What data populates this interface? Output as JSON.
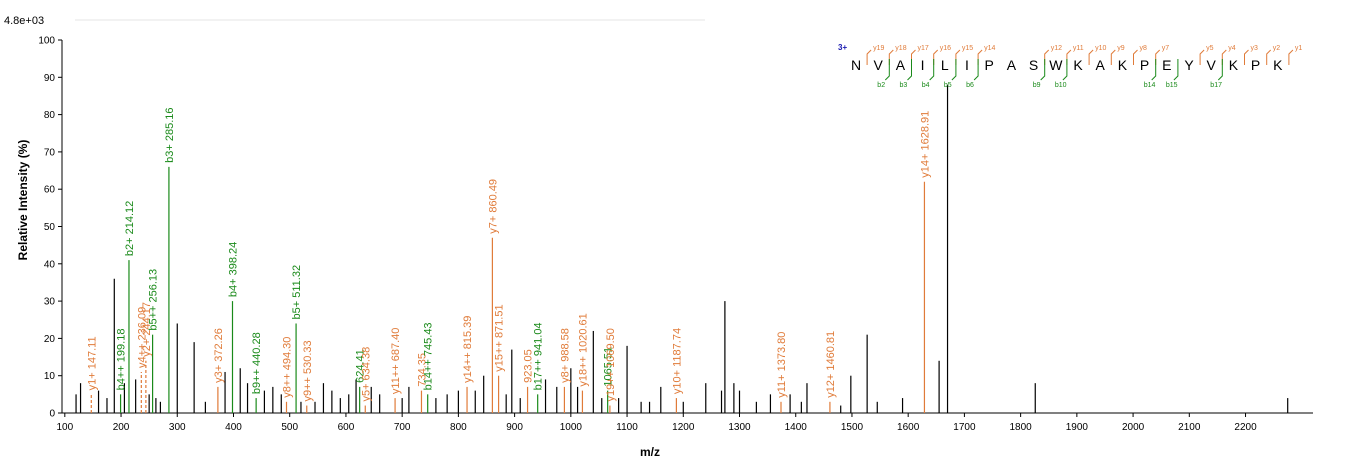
{
  "chart_data": {
    "type": "bar",
    "max_intensity_label": "4.8e+03",
    "xlabel": "m/z",
    "ylabel": "Relative  Intensity (%)",
    "xlim": [
      95,
      2320
    ],
    "ylim": [
      0,
      100
    ],
    "x_ticks": [
      100,
      200,
      300,
      400,
      500,
      600,
      700,
      800,
      900,
      1000,
      1100,
      1200,
      1300,
      1400,
      1500,
      1600,
      1700,
      1800,
      1900,
      2000,
      2100,
      2200
    ],
    "y_ticks": [
      0,
      10,
      20,
      30,
      40,
      50,
      60,
      70,
      80,
      90,
      100
    ],
    "colors": {
      "b": "#1a8a1a",
      "y": "#e07b39",
      "other": "#000000",
      "charge": "#1a1ab0"
    },
    "annotated_peaks": [
      {
        "x": 147.11,
        "y": 5,
        "label": "y1+ 147.11",
        "ion": "y",
        "dashed": true
      },
      {
        "x": 199.18,
        "y": 5,
        "label": "b4++ 199.18",
        "ion": "b"
      },
      {
        "x": 214.12,
        "y": 41,
        "label": "b2+ 214.12",
        "ion": "b"
      },
      {
        "x": 236.09,
        "y": 11,
        "label": "v4++ 236.09",
        "ion": "y",
        "dashed": true
      },
      {
        "x": 244.17,
        "y": 14,
        "label": "y2+ 244.17",
        "ion": "y",
        "dashed": true
      },
      {
        "x": 256.13,
        "y": 21,
        "label": "b5++ 256.13",
        "ion": "b"
      },
      {
        "x": 285.16,
        "y": 66,
        "label": "b3+ 285.16",
        "ion": "b"
      },
      {
        "x": 372.26,
        "y": 7,
        "label": "y3+ 372.26",
        "ion": "y"
      },
      {
        "x": 398.24,
        "y": 30,
        "label": "b4+ 398.24",
        "ion": "b"
      },
      {
        "x": 440.28,
        "y": 4,
        "label": "b9++ 440.28",
        "ion": "b"
      },
      {
        "x": 494.3,
        "y": 3,
        "label": "y8++ 494.30",
        "ion": "y"
      },
      {
        "x": 511.32,
        "y": 24,
        "label": "b5+ 511.32",
        "ion": "b"
      },
      {
        "x": 530.33,
        "y": 2,
        "label": "y9++ 530.33",
        "ion": "y"
      },
      {
        "x": 624.41,
        "y": 7,
        "label": "624.41",
        "ion": "b"
      },
      {
        "x": 634.38,
        "y": 2,
        "label": "y5+ 634.38",
        "ion": "y"
      },
      {
        "x": 687.4,
        "y": 4,
        "label": "y11++ 687.40",
        "ion": "y"
      },
      {
        "x": 734.35,
        "y": 6,
        "label": "734.35",
        "ion": "y"
      },
      {
        "x": 745.43,
        "y": 5,
        "label": "b14++ 745.43",
        "ion": "b"
      },
      {
        "x": 815.39,
        "y": 7,
        "label": "y14++ 815.39",
        "ion": "y"
      },
      {
        "x": 860.49,
        "y": 47,
        "label": "y7+ 860.49",
        "ion": "y"
      },
      {
        "x": 871.51,
        "y": 10,
        "label": "y15++ 871.51",
        "ion": "y"
      },
      {
        "x": 923.05,
        "y": 7,
        "label": "923.05",
        "ion": "y"
      },
      {
        "x": 941.04,
        "y": 5,
        "label": "b17++ 941.04",
        "ion": "b"
      },
      {
        "x": 988.58,
        "y": 7,
        "label": "y8+ 988.58",
        "ion": "y"
      },
      {
        "x": 1020.61,
        "y": 6,
        "label": "y18++ 1020.61",
        "ion": "y"
      },
      {
        "x": 1065.51,
        "y": 6,
        "label": "1065.51",
        "ion": "b"
      },
      {
        "x": 1069.5,
        "y": 2,
        "label": "y19++ 1069.50",
        "ion": "y"
      },
      {
        "x": 1187.74,
        "y": 4,
        "label": "y10+ 1187.74",
        "ion": "y"
      },
      {
        "x": 1373.8,
        "y": 3,
        "label": "y11+ 1373.80",
        "ion": "y"
      },
      {
        "x": 1460.81,
        "y": 3,
        "label": "y12+ 1460.81",
        "ion": "y"
      },
      {
        "x": 1628.91,
        "y": 62,
        "label": "y14+ 1628.91",
        "ion": "y"
      }
    ],
    "other_peaks": [
      {
        "x": 120,
        "y": 5
      },
      {
        "x": 128,
        "y": 8
      },
      {
        "x": 160,
        "y": 6
      },
      {
        "x": 175,
        "y": 4
      },
      {
        "x": 188,
        "y": 36
      },
      {
        "x": 206,
        "y": 8
      },
      {
        "x": 226,
        "y": 9
      },
      {
        "x": 250,
        "y": 5
      },
      {
        "x": 262,
        "y": 4
      },
      {
        "x": 270,
        "y": 3
      },
      {
        "x": 300,
        "y": 24
      },
      {
        "x": 330,
        "y": 19
      },
      {
        "x": 350,
        "y": 3
      },
      {
        "x": 385,
        "y": 11
      },
      {
        "x": 412,
        "y": 12
      },
      {
        "x": 425,
        "y": 8
      },
      {
        "x": 455,
        "y": 6
      },
      {
        "x": 470,
        "y": 7
      },
      {
        "x": 485,
        "y": 5
      },
      {
        "x": 520,
        "y": 3
      },
      {
        "x": 545,
        "y": 3
      },
      {
        "x": 560,
        "y": 8
      },
      {
        "x": 575,
        "y": 6
      },
      {
        "x": 590,
        "y": 4
      },
      {
        "x": 605,
        "y": 5
      },
      {
        "x": 618,
        "y": 9
      },
      {
        "x": 645,
        "y": 7
      },
      {
        "x": 660,
        "y": 5
      },
      {
        "x": 700,
        "y": 4
      },
      {
        "x": 712,
        "y": 7
      },
      {
        "x": 760,
        "y": 4
      },
      {
        "x": 780,
        "y": 5
      },
      {
        "x": 800,
        "y": 6
      },
      {
        "x": 830,
        "y": 6
      },
      {
        "x": 845,
        "y": 10
      },
      {
        "x": 885,
        "y": 5
      },
      {
        "x": 895,
        "y": 17
      },
      {
        "x": 910,
        "y": 4
      },
      {
        "x": 955,
        "y": 9
      },
      {
        "x": 975,
        "y": 7
      },
      {
        "x": 1000,
        "y": 12
      },
      {
        "x": 1012,
        "y": 7
      },
      {
        "x": 1040,
        "y": 22
      },
      {
        "x": 1055,
        "y": 4
      },
      {
        "x": 1085,
        "y": 4
      },
      {
        "x": 1100,
        "y": 18
      },
      {
        "x": 1125,
        "y": 3
      },
      {
        "x": 1140,
        "y": 3
      },
      {
        "x": 1160,
        "y": 7
      },
      {
        "x": 1200,
        "y": 3
      },
      {
        "x": 1240,
        "y": 8
      },
      {
        "x": 1268,
        "y": 6
      },
      {
        "x": 1274,
        "y": 30
      },
      {
        "x": 1290,
        "y": 8
      },
      {
        "x": 1300,
        "y": 6
      },
      {
        "x": 1330,
        "y": 3
      },
      {
        "x": 1355,
        "y": 5
      },
      {
        "x": 1390,
        "y": 5
      },
      {
        "x": 1410,
        "y": 3
      },
      {
        "x": 1420,
        "y": 8
      },
      {
        "x": 1480,
        "y": 2
      },
      {
        "x": 1498,
        "y": 10
      },
      {
        "x": 1527,
        "y": 21
      },
      {
        "x": 1545,
        "y": 3
      },
      {
        "x": 1590,
        "y": 4
      },
      {
        "x": 1655,
        "y": 14
      },
      {
        "x": 1670,
        "y": 88
      },
      {
        "x": 1826,
        "y": 8
      },
      {
        "x": 2275,
        "y": 4
      }
    ]
  },
  "sequence": {
    "charge": "3+",
    "residues": [
      "N",
      "V",
      "A",
      "I",
      "L",
      "I",
      "P",
      "A",
      "S",
      "W",
      "K",
      "A",
      "K",
      "P",
      "E",
      "Y",
      "V",
      "K",
      "P",
      "K"
    ],
    "y_ions": [
      {
        "after": 0,
        "label": "y19"
      },
      {
        "after": 1,
        "label": "y18"
      },
      {
        "after": 2,
        "label": "y17"
      },
      {
        "after": 3,
        "label": "y16"
      },
      {
        "after": 4,
        "label": "y15"
      },
      {
        "after": 5,
        "label": "y14"
      },
      {
        "after": 8,
        "label": "y12"
      },
      {
        "after": 9,
        "label": "y11"
      },
      {
        "after": 10,
        "label": "y10"
      },
      {
        "after": 11,
        "label": "y9"
      },
      {
        "after": 12,
        "label": "y8"
      },
      {
        "after": 13,
        "label": "y7"
      },
      {
        "after": 15,
        "label": "y5"
      },
      {
        "after": 16,
        "label": "y4"
      },
      {
        "after": 17,
        "label": "y3"
      },
      {
        "after": 18,
        "label": "y2"
      },
      {
        "after": 19,
        "label": "y1"
      }
    ],
    "b_ions": [
      {
        "after": 1,
        "label": "b2"
      },
      {
        "after": 2,
        "label": "b3"
      },
      {
        "after": 3,
        "label": "b4"
      },
      {
        "after": 4,
        "label": "b5"
      },
      {
        "after": 5,
        "label": "b6"
      },
      {
        "after": 8,
        "label": "b9"
      },
      {
        "after": 9,
        "label": "b10"
      },
      {
        "after": 13,
        "label": "b14"
      },
      {
        "after": 14,
        "label": "b15"
      },
      {
        "after": 16,
        "label": "b17"
      }
    ]
  }
}
